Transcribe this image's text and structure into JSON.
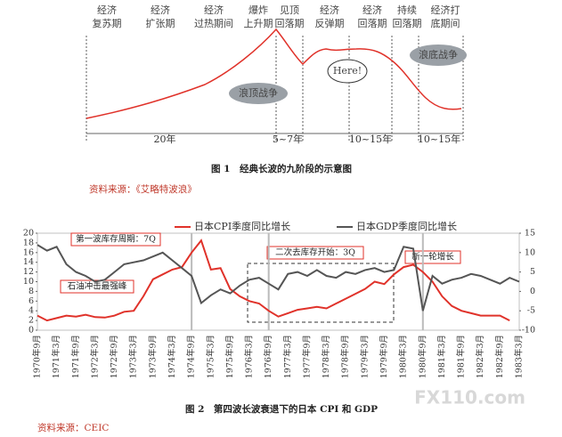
{
  "figure1": {
    "phases": [
      [
        "经济",
        "复苏期"
      ],
      [
        "经济",
        "扩张期"
      ],
      [
        "经济",
        "过热期间"
      ],
      [
        "爆炸",
        "上升期"
      ],
      [
        "见顶",
        "回落期"
      ],
      [
        "经济",
        "反弹期"
      ],
      [
        "经济",
        "回落期"
      ],
      [
        "持续",
        "回落期"
      ],
      [
        "经济打",
        "底期间"
      ]
    ],
    "bubbles": [
      "浪顶战争",
      "Here!",
      "浪底战争"
    ],
    "durations": [
      "20年",
      "5~7年",
      "10~15年",
      "10~15年"
    ],
    "caption": "图 1　经典长波的九阶段的示意图",
    "source": "资料来源：《艾略特波浪》"
  },
  "chart_data": {
    "type": "line",
    "categories": [
      "1970年9月",
      null,
      "1971年3月",
      null,
      "1971年9月",
      null,
      "1972年3月",
      null,
      "1972年9月",
      null,
      "1973年3月",
      null,
      "1973年9月",
      null,
      "1974年3月",
      null,
      "1974年9月",
      null,
      "1975年3月",
      null,
      "1975年9月",
      null,
      "1976年3月",
      null,
      "1976年9月",
      null,
      "1977年3月",
      null,
      "1977年9月",
      null,
      "1978年3月",
      null,
      "1978年9月",
      null,
      "1979年3月",
      null,
      "1979年9月",
      null,
      "1980年3月",
      null,
      "1980年9月",
      null,
      "1981年3月",
      null,
      "1981年9月",
      null,
      "1982年3月",
      null,
      "1982年9月",
      null,
      "1983年3月"
    ],
    "series": [
      {
        "name": "日本CPI季度同比增长",
        "color": "#e0322a",
        "values": [
          3,
          2,
          2.5,
          3,
          2.8,
          3.2,
          2.7,
          2.6,
          3,
          3.8,
          4,
          7,
          10.5,
          11.5,
          12.5,
          13,
          16,
          18.5,
          12.5,
          12.8,
          8.5,
          7,
          6,
          5.5,
          4,
          2.8,
          3.5,
          4.2,
          4.5,
          4.8,
          4.5,
          5.5,
          6.5,
          7.5,
          8.5,
          10,
          9.5,
          11.5,
          13,
          13.5,
          12,
          10,
          7,
          5,
          4,
          3.5,
          3,
          3,
          3,
          2,
          null
        ]
      },
      {
        "name": "日本GDP季度同比增长",
        "color": "#555555",
        "axis": "y2",
        "values": [
          12,
          10.5,
          11.5,
          7,
          5,
          4,
          2.5,
          3,
          5,
          7,
          7.5,
          8,
          9,
          10,
          8,
          6,
          4,
          -3,
          -1,
          0.5,
          -0.5,
          1.5,
          3,
          3.5,
          2,
          0.5,
          4.5,
          5,
          4,
          5.5,
          4,
          3.5,
          5,
          4.5,
          5.5,
          6,
          5,
          5.5,
          11.5,
          11,
          -5,
          4,
          2,
          3,
          3.5,
          4.5,
          4,
          3,
          2,
          3.5,
          2.5
        ]
      }
    ],
    "ylim": [
      0,
      20
    ],
    "yticks": [
      0,
      2,
      4,
      6,
      8,
      10,
      12,
      14,
      16,
      18,
      20
    ],
    "y2lim": [
      -10,
      15
    ],
    "y2ticks": [
      -10,
      -5,
      0,
      5,
      10,
      15
    ],
    "annotations": [
      "第一波库存周期：7Q",
      "石油冲击最强峰",
      "二次去库存开始：3Q",
      "新一轮增长"
    ],
    "caption": "图 2　第四波长波衰退下的日本 CPI 和 GDP",
    "source": "资料来源：CEIC",
    "watermark": "FX110.com"
  }
}
